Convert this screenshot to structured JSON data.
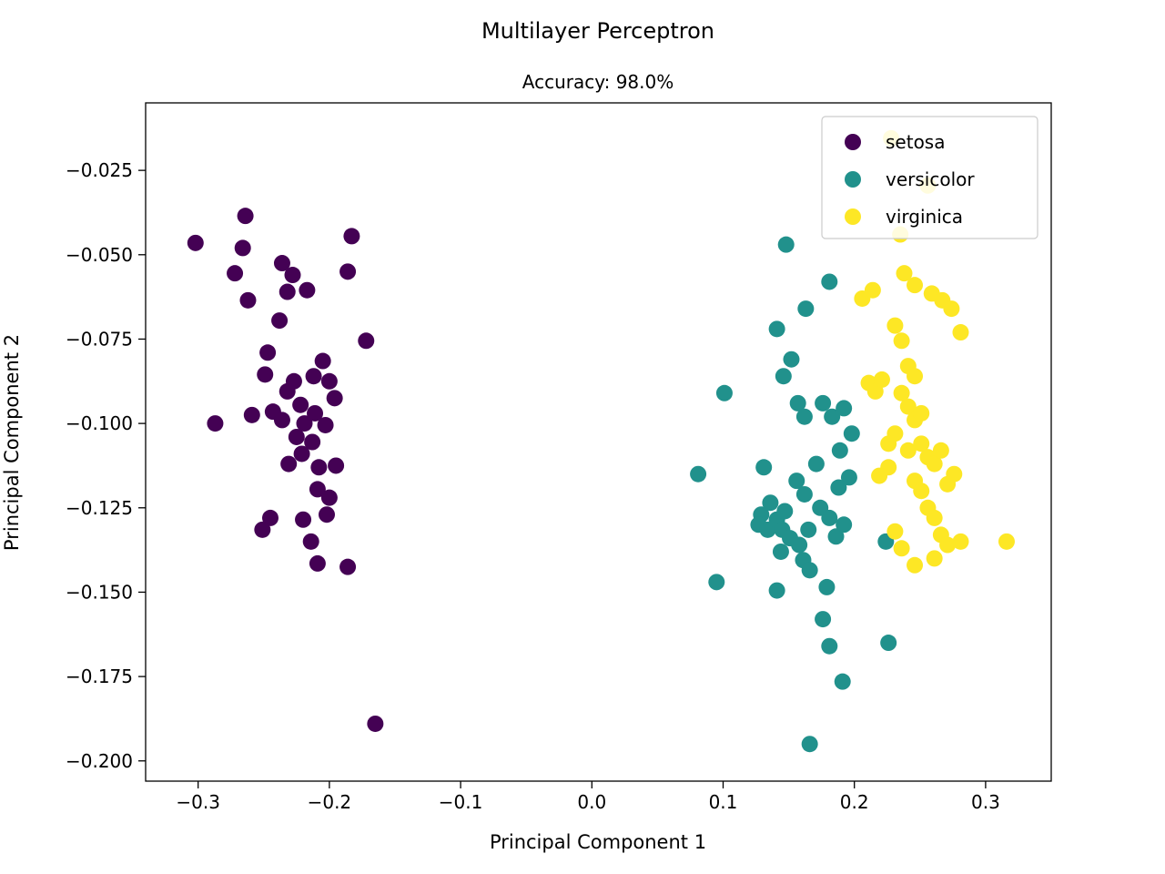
{
  "chart_data": {
    "type": "scatter",
    "title": "Multilayer Perceptron",
    "subtitle": "Accuracy: 98.0%",
    "xlabel": "Principal Component 1",
    "ylabel": "Principal Component 2",
    "xlim": [
      -0.34,
      0.35
    ],
    "ylim": [
      -0.206,
      -0.005
    ],
    "grid": false,
    "marker_size": 9,
    "xticks": {
      "values": [
        -0.3,
        -0.2,
        -0.1,
        0.0,
        0.1,
        0.2,
        0.3
      ],
      "labels": [
        "−0.3",
        "−0.2",
        "−0.1",
        "0.0",
        "0.1",
        "0.2",
        "0.3"
      ]
    },
    "yticks": {
      "values": [
        -0.025,
        -0.05,
        -0.075,
        -0.1,
        -0.125,
        -0.15,
        -0.175,
        -0.2
      ],
      "labels": [
        "−0.025",
        "−0.050",
        "−0.075",
        "−0.100",
        "−0.125",
        "−0.150",
        "−0.175",
        "−0.200"
      ]
    },
    "legend": {
      "position": "upper right",
      "entries": [
        "setosa",
        "versicolor",
        "virginica"
      ]
    },
    "series": [
      {
        "name": "setosa",
        "color": "#440154",
        "points": [
          [
            -0.302,
            -0.0465
          ],
          [
            -0.264,
            -0.0385
          ],
          [
            -0.266,
            -0.048
          ],
          [
            -0.272,
            -0.0555
          ],
          [
            -0.262,
            -0.0635
          ],
          [
            -0.236,
            -0.0525
          ],
          [
            -0.228,
            -0.056
          ],
          [
            -0.232,
            -0.061
          ],
          [
            -0.217,
            -0.0605
          ],
          [
            -0.238,
            -0.0695
          ],
          [
            -0.183,
            -0.0445
          ],
          [
            -0.186,
            -0.055
          ],
          [
            -0.172,
            -0.0755
          ],
          [
            -0.205,
            -0.0815
          ],
          [
            -0.212,
            -0.086
          ],
          [
            -0.247,
            -0.079
          ],
          [
            -0.249,
            -0.0855
          ],
          [
            -0.227,
            -0.0875
          ],
          [
            -0.232,
            -0.0905
          ],
          [
            -0.2,
            -0.0875
          ],
          [
            -0.196,
            -0.0925
          ],
          [
            -0.243,
            -0.0965
          ],
          [
            -0.236,
            -0.099
          ],
          [
            -0.222,
            -0.0945
          ],
          [
            -0.219,
            -0.1
          ],
          [
            -0.211,
            -0.097
          ],
          [
            -0.287,
            -0.1
          ],
          [
            -0.259,
            -0.0975
          ],
          [
            -0.225,
            -0.104
          ],
          [
            -0.213,
            -0.1055
          ],
          [
            -0.221,
            -0.109
          ],
          [
            -0.231,
            -0.112
          ],
          [
            -0.208,
            -0.113
          ],
          [
            -0.195,
            -0.1125
          ],
          [
            -0.203,
            -0.1005
          ],
          [
            -0.209,
            -0.1195
          ],
          [
            -0.202,
            -0.127
          ],
          [
            -0.245,
            -0.128
          ],
          [
            -0.251,
            -0.1315
          ],
          [
            -0.214,
            -0.135
          ],
          [
            -0.22,
            -0.1285
          ],
          [
            -0.209,
            -0.1415
          ],
          [
            -0.186,
            -0.1425
          ],
          [
            -0.2,
            -0.122
          ],
          [
            -0.165,
            -0.189
          ]
        ]
      },
      {
        "name": "versicolor",
        "color": "#21918c",
        "points": [
          [
            0.148,
            -0.047
          ],
          [
            0.181,
            -0.058
          ],
          [
            0.141,
            -0.072
          ],
          [
            0.163,
            -0.066
          ],
          [
            0.152,
            -0.081
          ],
          [
            0.146,
            -0.086
          ],
          [
            0.101,
            -0.091
          ],
          [
            0.157,
            -0.094
          ],
          [
            0.162,
            -0.098
          ],
          [
            0.176,
            -0.094
          ],
          [
            0.183,
            -0.098
          ],
          [
            0.192,
            -0.0955
          ],
          [
            0.198,
            -0.103
          ],
          [
            0.189,
            -0.108
          ],
          [
            0.131,
            -0.113
          ],
          [
            0.081,
            -0.115
          ],
          [
            0.156,
            -0.117
          ],
          [
            0.162,
            -0.121
          ],
          [
            0.136,
            -0.1235
          ],
          [
            0.129,
            -0.127
          ],
          [
            0.127,
            -0.13
          ],
          [
            0.134,
            -0.1315
          ],
          [
            0.141,
            -0.1285
          ],
          [
            0.147,
            -0.126
          ],
          [
            0.145,
            -0.1315
          ],
          [
            0.151,
            -0.134
          ],
          [
            0.158,
            -0.136
          ],
          [
            0.144,
            -0.138
          ],
          [
            0.165,
            -0.1315
          ],
          [
            0.174,
            -0.125
          ],
          [
            0.181,
            -0.128
          ],
          [
            0.186,
            -0.1335
          ],
          [
            0.192,
            -0.13
          ],
          [
            0.161,
            -0.1405
          ],
          [
            0.166,
            -0.1435
          ],
          [
            0.095,
            -0.147
          ],
          [
            0.141,
            -0.1495
          ],
          [
            0.179,
            -0.1485
          ],
          [
            0.176,
            -0.158
          ],
          [
            0.181,
            -0.166
          ],
          [
            0.226,
            -0.165
          ],
          [
            0.191,
            -0.1765
          ],
          [
            0.166,
            -0.195
          ],
          [
            0.224,
            -0.135
          ],
          [
            0.196,
            -0.116
          ],
          [
            0.171,
            -0.112
          ],
          [
            0.188,
            -0.119
          ]
        ]
      },
      {
        "name": "virginica",
        "color": "#fde725",
        "points": [
          [
            0.228,
            -0.0155
          ],
          [
            0.256,
            -0.0295
          ],
          [
            0.235,
            -0.044
          ],
          [
            0.238,
            -0.0555
          ],
          [
            0.246,
            -0.059
          ],
          [
            0.259,
            -0.0615
          ],
          [
            0.267,
            -0.0635
          ],
          [
            0.274,
            -0.066
          ],
          [
            0.206,
            -0.063
          ],
          [
            0.214,
            -0.0605
          ],
          [
            0.231,
            -0.071
          ],
          [
            0.236,
            -0.0755
          ],
          [
            0.281,
            -0.073
          ],
          [
            0.241,
            -0.083
          ],
          [
            0.246,
            -0.086
          ],
          [
            0.211,
            -0.088
          ],
          [
            0.216,
            -0.0905
          ],
          [
            0.221,
            -0.087
          ],
          [
            0.236,
            -0.091
          ],
          [
            0.241,
            -0.095
          ],
          [
            0.246,
            -0.099
          ],
          [
            0.251,
            -0.097
          ],
          [
            0.231,
            -0.103
          ],
          [
            0.226,
            -0.106
          ],
          [
            0.241,
            -0.108
          ],
          [
            0.251,
            -0.106
          ],
          [
            0.256,
            -0.11
          ],
          [
            0.261,
            -0.112
          ],
          [
            0.226,
            -0.113
          ],
          [
            0.219,
            -0.1155
          ],
          [
            0.246,
            -0.117
          ],
          [
            0.251,
            -0.12
          ],
          [
            0.276,
            -0.115
          ],
          [
            0.271,
            -0.118
          ],
          [
            0.256,
            -0.125
          ],
          [
            0.261,
            -0.128
          ],
          [
            0.231,
            -0.132
          ],
          [
            0.266,
            -0.133
          ],
          [
            0.271,
            -0.136
          ],
          [
            0.281,
            -0.135
          ],
          [
            0.316,
            -0.135
          ],
          [
            0.261,
            -0.14
          ],
          [
            0.236,
            -0.137
          ],
          [
            0.246,
            -0.142
          ],
          [
            0.266,
            -0.108
          ]
        ]
      }
    ]
  }
}
